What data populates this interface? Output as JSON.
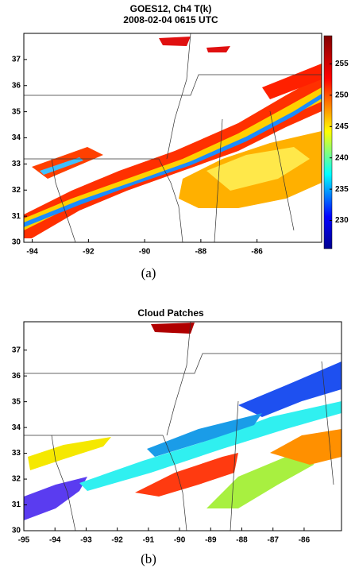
{
  "chart_data": [
    {
      "type": "map",
      "title": "GOES12, Ch4 T(k)",
      "subtitle": "2008-02-04 0615 UTC",
      "xlim": [
        -94.3,
        -83.7
      ],
      "xticks": [
        -94,
        -92,
        -90,
        -88,
        -86
      ],
      "ylim": [
        30,
        38
      ],
      "yticks": [
        30,
        31,
        32,
        33,
        34,
        35,
        36,
        37
      ],
      "clim": [
        225.5,
        259.5
      ],
      "cticks": [
        230,
        235,
        240,
        245,
        250,
        255
      ],
      "caption": "(a)"
    },
    {
      "type": "map",
      "title": "Cloud Patches",
      "xlim": [
        -95,
        -84.8
      ],
      "xticks": [
        -95,
        -94,
        -93,
        -92,
        -91,
        -90,
        -89,
        -88,
        -87,
        -86
      ],
      "ylim": [
        30,
        38.1
      ],
      "yticks": [
        30,
        31,
        32,
        33,
        34,
        35,
        36,
        37
      ],
      "caption": "(b)"
    }
  ]
}
